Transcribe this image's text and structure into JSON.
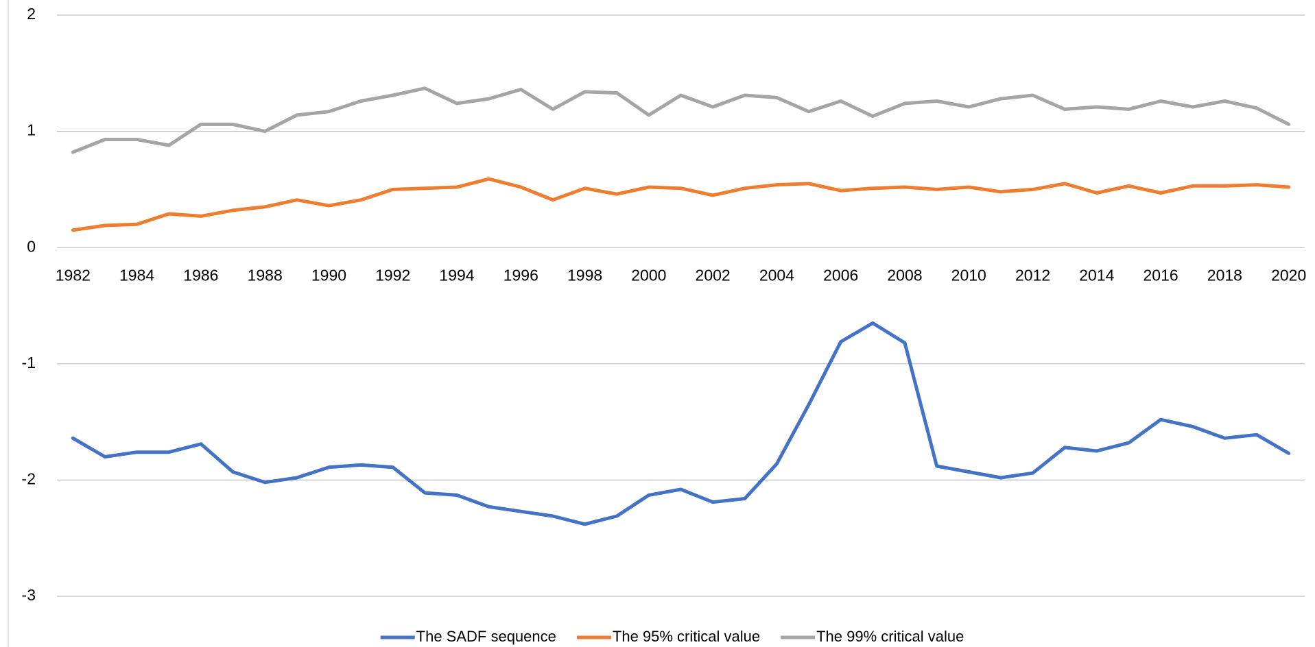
{
  "chart_data": {
    "type": "line",
    "categories": [
      "1982",
      null,
      "1984",
      null,
      "1986",
      null,
      "1988",
      null,
      "1990",
      null,
      "1992",
      null,
      "1994",
      null,
      "1996",
      null,
      "1998",
      null,
      "2000",
      null,
      "2002",
      null,
      "2004",
      null,
      "2006",
      null,
      "2008",
      null,
      "2010",
      null,
      "2012",
      null,
      "2014",
      null,
      "2016",
      null,
      "2018",
      null,
      "2020"
    ],
    "series": [
      {
        "name": "The SADF sequence",
        "color": "#4472c4",
        "values": [
          -1.64,
          -1.8,
          -1.76,
          -1.76,
          -1.69,
          -1.93,
          -2.02,
          -1.98,
          -1.89,
          -1.87,
          -1.89,
          -2.11,
          -2.13,
          -2.23,
          -2.27,
          -2.31,
          -2.38,
          -2.31,
          -2.13,
          -2.08,
          -2.19,
          -2.16,
          -1.86,
          -1.35,
          -0.81,
          -0.65,
          -0.82,
          -1.88,
          -1.93,
          -1.98,
          -1.94,
          -1.72,
          -1.75,
          -1.68,
          -1.48,
          -1.54,
          -1.64,
          -1.61,
          -1.77
        ]
      },
      {
        "name": "The 95% critical value",
        "color": "#ed7d31",
        "values": [
          0.15,
          0.19,
          0.2,
          0.29,
          0.27,
          0.32,
          0.35,
          0.41,
          0.36,
          0.41,
          0.5,
          0.51,
          0.52,
          0.59,
          0.52,
          0.41,
          0.51,
          0.46,
          0.52,
          0.51,
          0.45,
          0.51,
          0.54,
          0.55,
          0.49,
          0.51,
          0.52,
          0.5,
          0.52,
          0.48,
          0.5,
          0.55,
          0.47,
          0.53,
          0.47,
          0.53,
          0.53,
          0.54,
          0.52
        ]
      },
      {
        "name": "The 99% critical value",
        "color": "#a5a5a5",
        "values": [
          0.82,
          0.93,
          0.93,
          0.88,
          1.06,
          1.06,
          1.0,
          1.14,
          1.17,
          1.26,
          1.31,
          1.37,
          1.24,
          1.28,
          1.36,
          1.19,
          1.34,
          1.33,
          1.14,
          1.31,
          1.21,
          1.31,
          1.29,
          1.17,
          1.26,
          1.13,
          1.24,
          1.26,
          1.21,
          1.28,
          1.31,
          1.19,
          1.21,
          1.19,
          1.26,
          1.21,
          1.26,
          1.2,
          1.06
        ]
      }
    ],
    "ylim": [
      -3,
      2
    ],
    "yticks": [
      -3,
      -2,
      -1,
      0,
      1,
      2
    ],
    "grid": true,
    "legend": "bottom"
  }
}
